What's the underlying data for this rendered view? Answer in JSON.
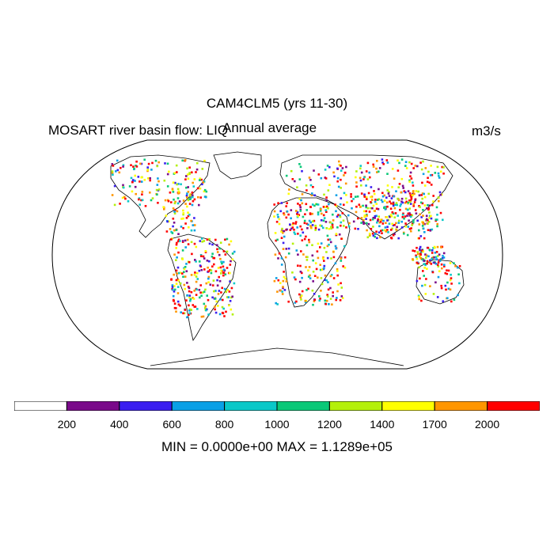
{
  "title": "CAM4CLM5 (yrs 11-30)",
  "left_label": "MOSART river basin flow: LIQ",
  "center_label": "Annual average",
  "right_label": "m3/s",
  "stats_text": "MIN = 0.0000e+00 MAX = 1.1289e+05",
  "colorbar": {
    "colors": [
      "#ffffff",
      "#7a0a8a",
      "#3a1ef0",
      "#0aa0e6",
      "#0ac8c8",
      "#0ac878",
      "#b4f00a",
      "#ffff00",
      "#ff9600",
      "#ff0000"
    ],
    "ticks": [
      "200",
      "400",
      "600",
      "800",
      "1000",
      "1200",
      "1400",
      "1700",
      "2000"
    ]
  },
  "legend_colors": [
    "#ff0000",
    "#ff9600",
    "#ffff00",
    "#b4f00a",
    "#0ac878",
    "#0ac8c8",
    "#0aa0e6",
    "#3a1ef0",
    "#7a0a8a"
  ]
}
